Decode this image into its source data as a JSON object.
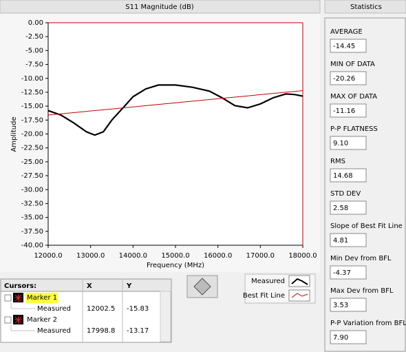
{
  "chart_data": {
    "type": "line",
    "title": "S11 Magnitude (dB)",
    "x_label": "Frequency (MHz)",
    "y_label": "Amplitude",
    "x": [
      12000,
      12300,
      12600,
      12900,
      13100,
      13300,
      13500,
      13800,
      14000,
      14300,
      14600,
      15000,
      15400,
      15800,
      16100,
      16400,
      16700,
      17000,
      17300,
      17600,
      17800,
      18000
    ],
    "series": [
      {
        "name": "Measured",
        "color": "#000000",
        "values": [
          -15.8,
          -16.6,
          -18.0,
          -19.6,
          -20.2,
          -19.6,
          -17.5,
          -15.0,
          -13.3,
          -11.9,
          -11.2,
          -11.2,
          -11.6,
          -12.3,
          -13.5,
          -14.9,
          -15.3,
          -14.6,
          -13.5,
          -12.8,
          -12.9,
          -13.2
        ]
      },
      {
        "name": "Best Fit Line",
        "color": "#c00000",
        "values": [
          -16.6,
          -16.38,
          -16.16,
          -15.94,
          -15.79,
          -15.65,
          -15.5,
          -15.28,
          -15.13,
          -14.91,
          -14.69,
          -14.4,
          -14.11,
          -13.81,
          -13.59,
          -13.37,
          -13.15,
          -12.93,
          -12.71,
          -12.49,
          -12.35,
          -12.2
        ]
      }
    ],
    "xlim": [
      12000,
      18000
    ],
    "ylim": [
      -40,
      0
    ],
    "xticks": [
      {
        "value": 12000,
        "label": "12000.0"
      },
      {
        "value": 13000,
        "label": "13000.0"
      },
      {
        "value": 14000,
        "label": "14000.0"
      },
      {
        "value": 15000,
        "label": "15000.0"
      },
      {
        "value": 16000,
        "label": "16000.0"
      },
      {
        "value": 17000,
        "label": "17000.0"
      },
      {
        "value": 18000,
        "label": "18000.0"
      }
    ],
    "yticks": [
      {
        "value": 0,
        "label": "0.00"
      },
      {
        "value": -2.5,
        "label": "-2.50"
      },
      {
        "value": -5,
        "label": "-5.00"
      },
      {
        "value": -7.5,
        "label": "-7.50"
      },
      {
        "value": -10,
        "label": "-10.00"
      },
      {
        "value": -12.5,
        "label": "-12.50"
      },
      {
        "value": -15,
        "label": "-15.00"
      },
      {
        "value": -17.5,
        "label": "-17.50"
      },
      {
        "value": -20,
        "label": "-20.00"
      },
      {
        "value": -22.5,
        "label": "-22.50"
      },
      {
        "value": -25,
        "label": "-25.00"
      },
      {
        "value": -27.5,
        "label": "-27.50"
      },
      {
        "value": -30,
        "label": "-30.00"
      },
      {
        "value": -32.5,
        "label": "-32.50"
      },
      {
        "value": -35,
        "label": "-35.00"
      },
      {
        "value": -37.5,
        "label": "-37.50"
      },
      {
        "value": -40,
        "label": "-40.00"
      }
    ]
  },
  "cursors": {
    "headers": [
      "Cursors:",
      "X",
      "Y"
    ],
    "markers": [
      {
        "name": "Marker 1",
        "plot": "Measured",
        "x": "12002.5",
        "y": "-15.83"
      },
      {
        "name": "Marker 2",
        "plot": "Measured",
        "x": "17998.8",
        "y": "-13.17"
      }
    ]
  },
  "statistics": {
    "title": "Statistics",
    "items": [
      {
        "label": "AVERAGE",
        "value": "-14.45"
      },
      {
        "label": "MIN OF DATA",
        "value": "-20.26"
      },
      {
        "label": "MAX OF DATA",
        "value": "-11.16"
      },
      {
        "label": "P-P FLATNESS",
        "value": "9.10"
      },
      {
        "label": "RMS",
        "value": "14.68"
      },
      {
        "label": "STD DEV",
        "value": "2.58"
      },
      {
        "label": "Slope of Best Fit Line",
        "value": "4.81"
      },
      {
        "label": "Min Dev from BFL",
        "value": "-4.37"
      },
      {
        "label": "Max Dev from BFL",
        "value": "3.53"
      },
      {
        "label": "P-P Variation from BFL",
        "value": "7.90"
      }
    ]
  }
}
